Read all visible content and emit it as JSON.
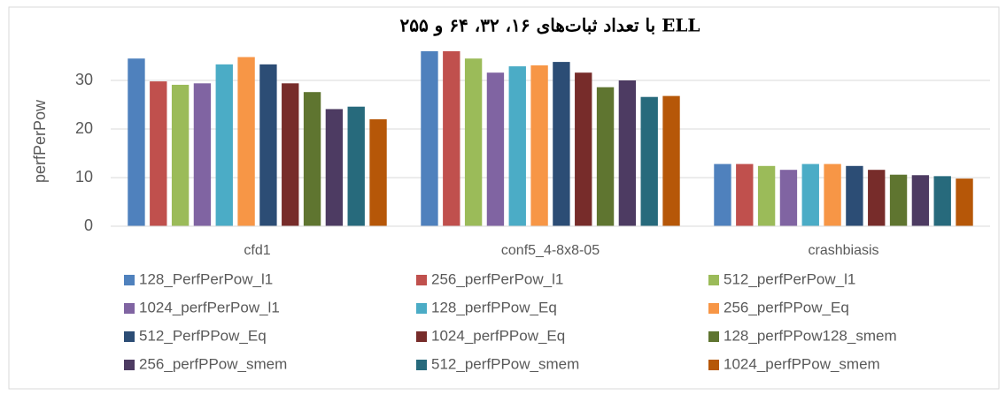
{
  "chart_data": {
    "type": "bar",
    "title": "ELL با تعداد ثبات‌های ۱۶، ۳۲، ۶۴ و ۲۵۵",
    "y_label": "perfPerPow",
    "categories": [
      "cfd1",
      "conf5_4-8x8-05",
      "crashbiasis"
    ],
    "ylim": [
      0,
      40
    ],
    "yticks": [
      0,
      10,
      20,
      30
    ],
    "grid": true,
    "legend": "bottom",
    "series": [
      {
        "name": "128_PerfPerPow_l1",
        "color": "#4f81bd",
        "values": [
          34.5,
          36.0,
          12.8
        ]
      },
      {
        "name": "256_perfPerPow_l1",
        "color": "#c0504d",
        "values": [
          29.8,
          36.0,
          12.8
        ]
      },
      {
        "name": "512_perfPerPow_l1",
        "color": "#9bbb59",
        "values": [
          29.1,
          34.5,
          12.4
        ]
      },
      {
        "name": "1024_perfPerPow_l1",
        "color": "#8064a2",
        "values": [
          29.4,
          31.6,
          11.6
        ]
      },
      {
        "name": "128_perfPPow_Eq",
        "color": "#4bacc6",
        "values": [
          33.3,
          32.9,
          12.8
        ]
      },
      {
        "name": "256_perfPPow_Eq",
        "color": "#f79646",
        "values": [
          34.8,
          33.1,
          12.8
        ]
      },
      {
        "name": "512_PerfPPow_Eq",
        "color": "#2c4d75",
        "values": [
          33.3,
          33.8,
          12.4
        ]
      },
      {
        "name": "1024_perfPPow_Eq",
        "color": "#772c2a",
        "values": [
          29.4,
          31.6,
          11.6
        ]
      },
      {
        "name": "128_perfPPow128_smem",
        "color": "#5f7530",
        "values": [
          27.6,
          28.6,
          10.6
        ]
      },
      {
        "name": "256_perfPPow_smem",
        "color": "#4d3b62",
        "values": [
          24.1,
          30.0,
          10.5
        ]
      },
      {
        "name": "512_perfPPow_smem",
        "color": "#276a7c",
        "values": [
          24.6,
          26.6,
          10.3
        ]
      },
      {
        "name": "1024_perfPPow_smem",
        "color": "#b65708",
        "values": [
          22.0,
          26.8,
          9.8
        ]
      }
    ]
  }
}
